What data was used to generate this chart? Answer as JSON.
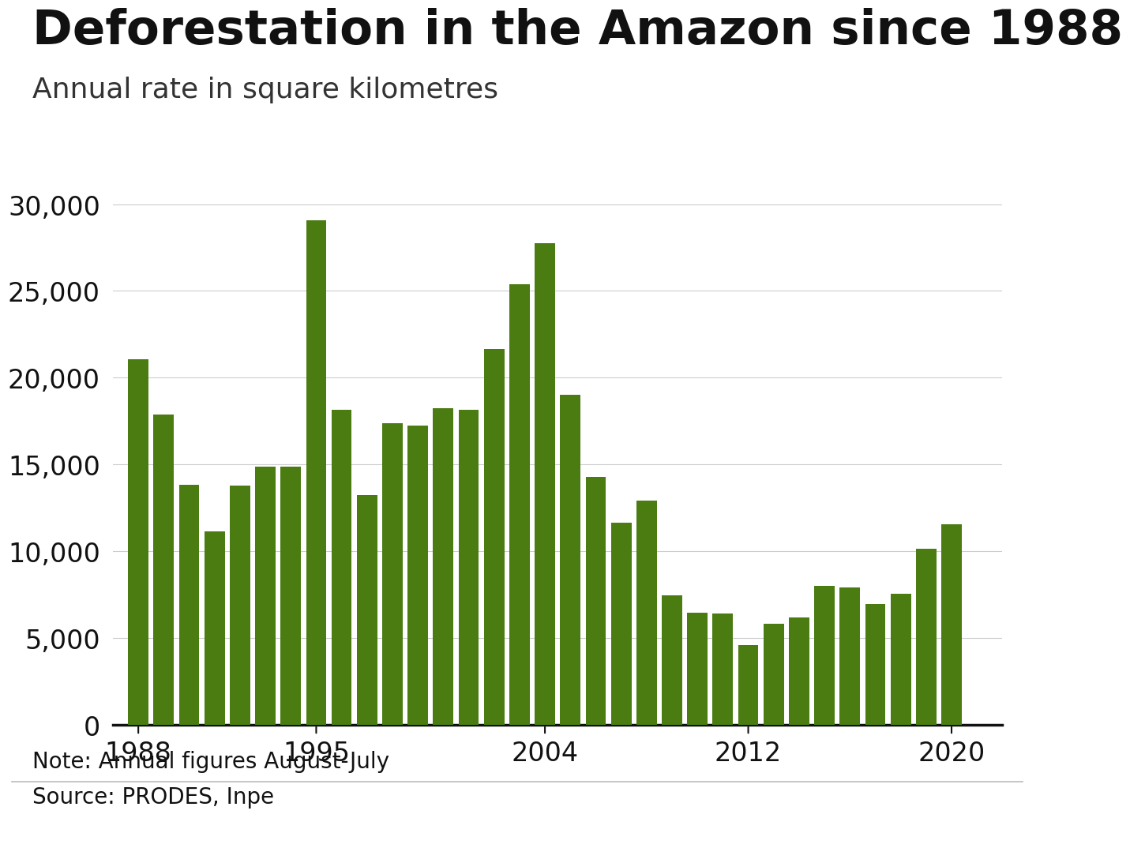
{
  "title": "Deforestation in the Amazon since 1988",
  "subtitle": "Annual rate in square kilometres",
  "note": "Note: Annual figures August-July",
  "source": "Source: PRODES, Inpe",
  "bar_color": "#4a7c12",
  "background_color": "#ffffff",
  "years": [
    1988,
    1989,
    1990,
    1991,
    1992,
    1993,
    1994,
    1995,
    1996,
    1997,
    1998,
    1999,
    2000,
    2001,
    2002,
    2003,
    2004,
    2005,
    2006,
    2007,
    2008,
    2009,
    2010,
    2011,
    2012,
    2013,
    2014,
    2015,
    2016,
    2017,
    2018,
    2019,
    2020,
    2021
  ],
  "values": [
    21050,
    17860,
    13820,
    11130,
    13786,
    14896,
    14896,
    29059,
    18161,
    13227,
    17383,
    17259,
    18226,
    18165,
    21651,
    25396,
    27772,
    19014,
    14286,
    11651,
    12911,
    7464,
    6451,
    6418,
    4571,
    5843,
    6207,
    7989,
    7893,
    6947,
    7536,
    10129,
    11568,
    0
  ],
  "yticks": [
    0,
    5000,
    10000,
    15000,
    20000,
    25000,
    30000
  ],
  "xtick_years": [
    1988,
    1995,
    2004,
    2012,
    2020
  ],
  "ylim": [
    0,
    32000
  ],
  "footer_sep_color": "#bbbbbb",
  "grid_color": "#cccccc",
  "axis_line_color": "#111111",
  "bbc_box_color": "#555555",
  "bbc_text_color": "#ffffff",
  "title_fontsize": 44,
  "subtitle_fontsize": 26,
  "tick_fontsize": 24,
  "footer_fontsize": 20
}
